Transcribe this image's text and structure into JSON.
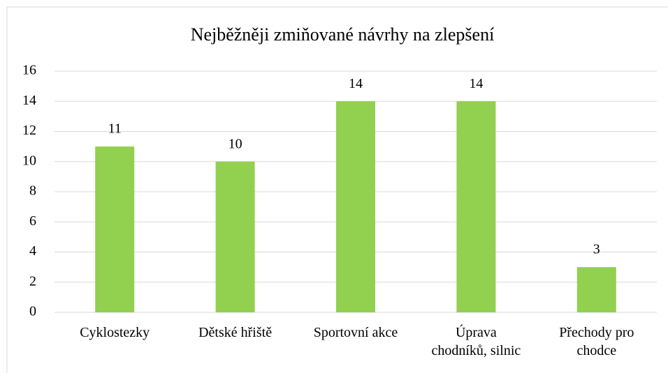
{
  "chart_data": {
    "type": "bar",
    "title": "Nejběžněji zmiňované návrhy na zlepšení",
    "categories": [
      "Cyklostezky",
      "Dětské hřiště",
      "Sportovní akce",
      "Úprava\nchodníků, silnic",
      "Přechody pro\nchodce"
    ],
    "values": [
      11,
      10,
      14,
      14,
      3
    ],
    "color": "#92d050",
    "ylim": [
      0,
      16
    ],
    "yticks": [
      0,
      2,
      4,
      6,
      8,
      10,
      12,
      14,
      16
    ],
    "grid": true
  }
}
